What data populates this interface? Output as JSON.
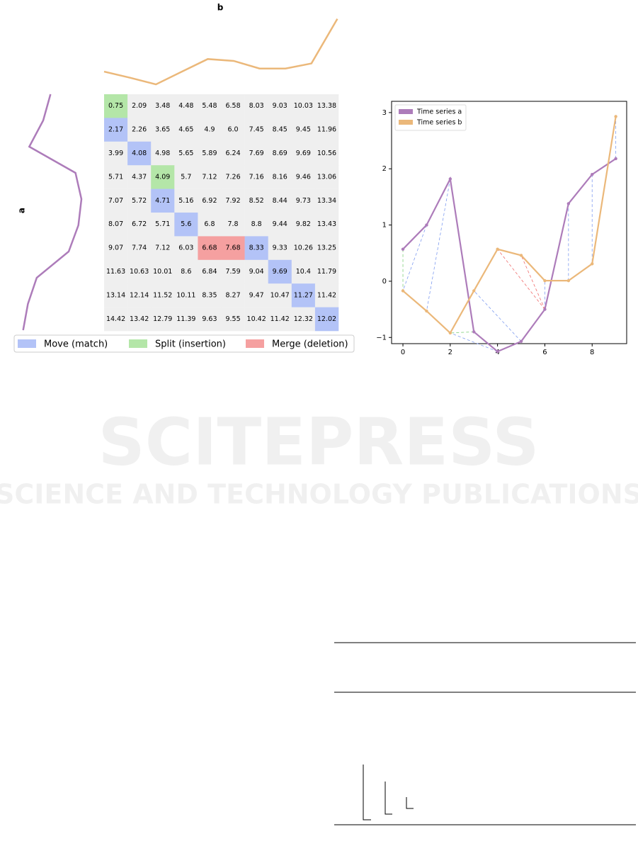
{
  "chart_data": [
    {
      "type": "heatmap",
      "x_label": "b",
      "y_label": "a",
      "cells": [
        [
          "0.75",
          "2.09",
          "3.48",
          "4.48",
          "5.48",
          "6.58",
          "8.03",
          "9.03",
          "10.03",
          "13.38"
        ],
        [
          "2.17",
          "2.26",
          "3.65",
          "4.65",
          "4.9",
          "6.0",
          "7.45",
          "8.45",
          "9.45",
          "11.96"
        ],
        [
          "3.99",
          "4.08",
          "4.98",
          "5.65",
          "5.89",
          "6.24",
          "7.69",
          "8.69",
          "9.69",
          "10.56"
        ],
        [
          "5.71",
          "4.37",
          "4.09",
          "5.7",
          "7.12",
          "7.26",
          "7.16",
          "8.16",
          "9.46",
          "13.06"
        ],
        [
          "7.07",
          "5.72",
          "4.71",
          "5.16",
          "6.92",
          "7.92",
          "8.52",
          "8.44",
          "9.73",
          "13.34"
        ],
        [
          "8.07",
          "6.72",
          "5.71",
          "5.6",
          "6.8",
          "7.8",
          "8.8",
          "9.44",
          "9.82",
          "13.43"
        ],
        [
          "9.07",
          "7.74",
          "7.12",
          "6.03",
          "6.68",
          "7.68",
          "8.33",
          "9.33",
          "10.26",
          "13.25"
        ],
        [
          "11.63",
          "10.63",
          "10.01",
          "8.6",
          "6.84",
          "7.59",
          "9.04",
          "9.69",
          "10.4",
          "11.79"
        ],
        [
          "13.14",
          "12.14",
          "11.52",
          "10.11",
          "8.35",
          "8.27",
          "9.47",
          "10.47",
          "11.27",
          "11.42"
        ],
        [
          "14.42",
          "13.42",
          "12.79",
          "11.39",
          "9.63",
          "9.55",
          "10.42",
          "11.42",
          "12.32",
          "12.02"
        ]
      ],
      "highlights": [
        {
          "name": "Move (match)",
          "color": "#b3c3f7",
          "cells": [
            [
              1,
              0
            ],
            [
              2,
              1
            ],
            [
              4,
              2
            ],
            [
              5,
              3
            ],
            [
              6,
              6
            ],
            [
              7,
              7
            ],
            [
              8,
              8
            ],
            [
              9,
              9
            ]
          ]
        },
        {
          "name": "Split (insertion)",
          "color": "#b4e6a8",
          "cells": [
            [
              0,
              0
            ],
            [
              3,
              2
            ]
          ]
        },
        {
          "name": "Merge (deletion)",
          "color": "#f5a0a0",
          "cells": [
            [
              6,
              4
            ],
            [
              6,
              5
            ]
          ]
        }
      ]
    },
    {
      "type": "line",
      "x": [
        0,
        1,
        2,
        3,
        4,
        5,
        6,
        7,
        8,
        9
      ],
      "series": [
        {
          "name": "Time series a",
          "color": "#ad7cba",
          "values": [
            0.57,
            1.0,
            1.82,
            -0.9,
            -1.25,
            -1.07,
            -0.5,
            1.38,
            1.9,
            2.18
          ]
        },
        {
          "name": "Time series b",
          "color": "#ebb87a",
          "values": [
            -0.17,
            -0.53,
            -0.92,
            -0.17,
            0.57,
            0.46,
            0.01,
            0.01,
            0.31,
            2.93
          ]
        }
      ],
      "xlim": [
        -0.48,
        9.46
      ],
      "ylim": [
        -1.11,
        3.2
      ],
      "xticks": [
        0,
        2,
        4,
        6,
        8
      ],
      "yticks": [
        {
          "value": -1,
          "label": "−1"
        },
        0,
        1,
        2,
        3
      ],
      "legend": "upper left"
    }
  ],
  "watermark": {
    "title": "SCITEPRESS",
    "subtitle": "SCIENCE AND TECHNOLOGY PUBLICATIONS"
  }
}
